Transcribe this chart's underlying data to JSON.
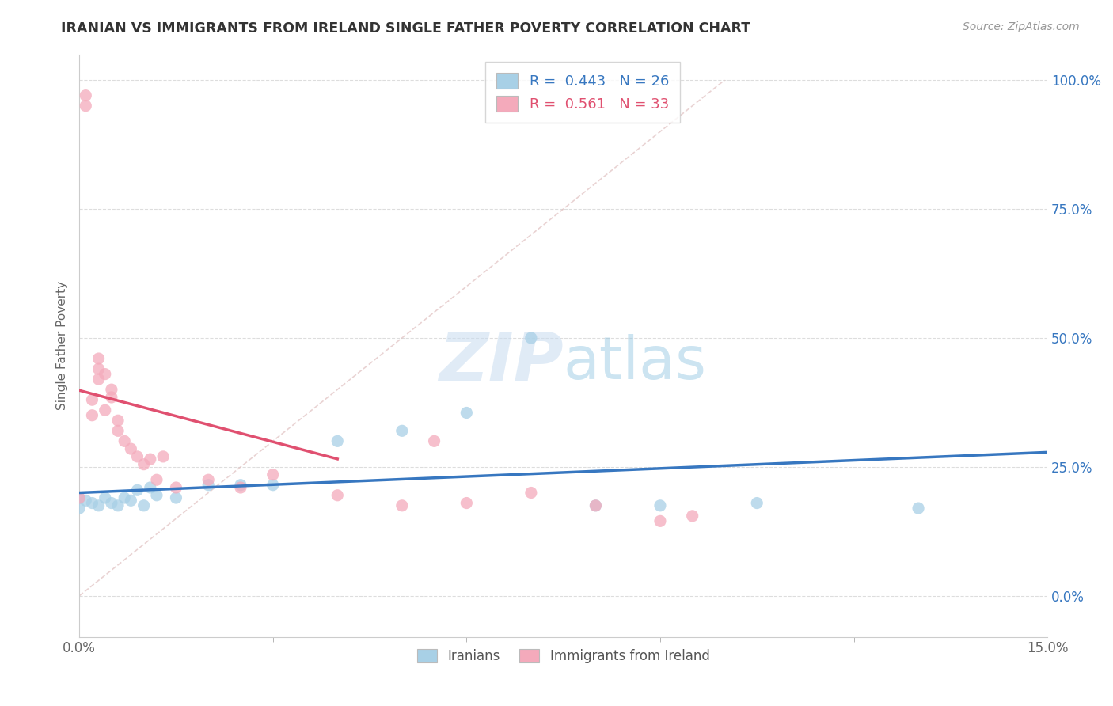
{
  "title": "IRANIAN VS IMMIGRANTS FROM IRELAND SINGLE FATHER POVERTY CORRELATION CHART",
  "source": "Source: ZipAtlas.com",
  "ylabel": "Single Father Poverty",
  "ytick_vals": [
    0.0,
    0.25,
    0.5,
    0.75,
    1.0
  ],
  "ytick_labels": [
    "0.0%",
    "25.0%",
    "50.0%",
    "75.0%",
    "100.0%"
  ],
  "xlim": [
    0.0,
    0.15
  ],
  "ylim": [
    -0.08,
    1.05
  ],
  "iranians_R": 0.443,
  "iranians_N": 26,
  "ireland_R": 0.561,
  "ireland_N": 33,
  "iranians_color": "#A8D0E6",
  "ireland_color": "#F4AABB",
  "iranians_line_color": "#3777C0",
  "ireland_line_color": "#E05070",
  "watermark_color": "#C8DCF0",
  "background_color": "#FFFFFF",
  "grid_color": "#DDDDDD",
  "iranians_x": [
    0.0,
    0.0,
    0.001,
    0.002,
    0.003,
    0.004,
    0.005,
    0.006,
    0.007,
    0.008,
    0.009,
    0.01,
    0.011,
    0.012,
    0.015,
    0.02,
    0.025,
    0.03,
    0.04,
    0.05,
    0.06,
    0.07,
    0.08,
    0.09,
    0.105,
    0.13
  ],
  "iranians_y": [
    0.19,
    0.17,
    0.185,
    0.18,
    0.175,
    0.19,
    0.18,
    0.175,
    0.19,
    0.185,
    0.205,
    0.175,
    0.21,
    0.195,
    0.19,
    0.215,
    0.215,
    0.215,
    0.3,
    0.32,
    0.355,
    0.5,
    0.175,
    0.175,
    0.18,
    0.17
  ],
  "ireland_x": [
    0.0,
    0.001,
    0.001,
    0.002,
    0.002,
    0.003,
    0.003,
    0.003,
    0.004,
    0.004,
    0.005,
    0.005,
    0.006,
    0.006,
    0.007,
    0.008,
    0.009,
    0.01,
    0.011,
    0.012,
    0.013,
    0.015,
    0.02,
    0.025,
    0.03,
    0.04,
    0.05,
    0.055,
    0.06,
    0.07,
    0.08,
    0.09,
    0.095
  ],
  "ireland_y": [
    0.19,
    0.95,
    0.97,
    0.38,
    0.35,
    0.46,
    0.44,
    0.42,
    0.43,
    0.36,
    0.4,
    0.385,
    0.34,
    0.32,
    0.3,
    0.285,
    0.27,
    0.255,
    0.265,
    0.225,
    0.27,
    0.21,
    0.225,
    0.21,
    0.235,
    0.195,
    0.175,
    0.3,
    0.18,
    0.2,
    0.175,
    0.145,
    0.155
  ]
}
